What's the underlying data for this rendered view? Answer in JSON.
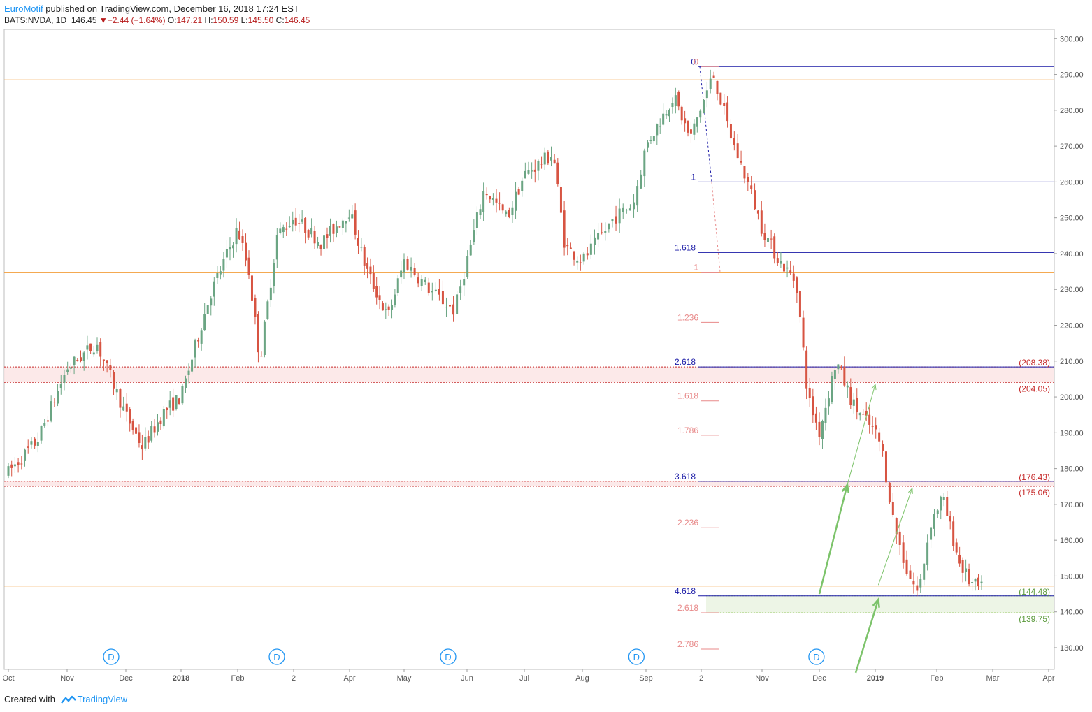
{
  "header": {
    "author": "EuroMotif",
    "published_text": "published on TradingView.com, December 16, 2018 17:24 EST",
    "symbol": "BATS:NVDA, 1D",
    "last": "146.45",
    "change": "−2.44 (−1.64%)",
    "o_label": "O:",
    "o_value": "147.21",
    "h_label": "H:",
    "h_value": "150.59",
    "l_label": "L:",
    "l_value": "145.50",
    "c_label": "C:",
    "c_value": "146.45"
  },
  "footer": {
    "created_text": "Created with",
    "brand": "TradingView"
  },
  "colors": {
    "up": "#6ba583",
    "down": "#d75442",
    "orange": "#f29d38",
    "fib_blue": "#1a1aa6",
    "fib_pink": "#e88a8a",
    "zone_red": "#fbe3e3",
    "zone_green": "#e8f2e0",
    "label_red": "#c62828",
    "label_green": "#5b9a3c",
    "arrow": "#7cc36a"
  },
  "chart_data": {
    "type": "candlestick",
    "symbol": "NVDA",
    "interval": "1D",
    "ylim": [
      123,
      303
    ],
    "y_ticks": [
      130,
      140,
      150,
      160,
      170,
      180,
      190,
      200,
      210,
      220,
      230,
      240,
      250,
      260,
      270,
      280,
      290,
      300
    ],
    "x_labels": [
      {
        "label": "Oct",
        "month": 0
      },
      {
        "label": "Nov",
        "month": 1
      },
      {
        "label": "Dec",
        "month": 2
      },
      {
        "label": "2018",
        "month": 3
      },
      {
        "label": "Feb",
        "month": 4
      },
      {
        "label": "2",
        "month": 5
      },
      {
        "label": "Apr",
        "month": 6
      },
      {
        "label": "May",
        "month": 7
      },
      {
        "label": "Jun",
        "month": 8
      },
      {
        "label": "Jul",
        "month": 9
      },
      {
        "label": "Aug",
        "month": 10
      },
      {
        "label": "Sep",
        "month": 11
      },
      {
        "label": "2",
        "month": 12
      },
      {
        "label": "Nov",
        "month": 13
      },
      {
        "label": "Dec",
        "month": 14
      },
      {
        "label": "2019",
        "month": 15
      },
      {
        "label": "Feb",
        "month": 16
      },
      {
        "label": "Mar",
        "month": 17
      },
      {
        "label": "Apr",
        "month": 18
      }
    ],
    "price_path": [
      [
        0,
        179
      ],
      [
        0.5,
        188
      ],
      [
        1,
        208
      ],
      [
        1.5,
        215
      ],
      [
        2,
        195
      ],
      [
        2.3,
        186
      ],
      [
        2.7,
        196
      ],
      [
        3,
        200
      ],
      [
        3.5,
        228
      ],
      [
        4,
        247
      ],
      [
        4.2,
        235
      ],
      [
        4.4,
        210
      ],
      [
        4.7,
        245
      ],
      [
        5,
        250
      ],
      [
        5.5,
        243
      ],
      [
        6,
        252
      ],
      [
        6.3,
        236
      ],
      [
        6.7,
        222
      ],
      [
        7,
        238
      ],
      [
        7.4,
        230
      ],
      [
        7.8,
        224
      ],
      [
        8,
        238
      ],
      [
        8.3,
        258
      ],
      [
        8.7,
        250
      ],
      [
        9,
        262
      ],
      [
        9.5,
        268
      ],
      [
        9.7,
        242
      ],
      [
        10,
        238
      ],
      [
        10.5,
        250
      ],
      [
        10.8,
        254
      ],
      [
        11,
        270
      ],
      [
        11.5,
        284
      ],
      [
        11.8,
        272
      ],
      [
        12.2,
        290
      ],
      [
        12.5,
        272
      ],
      [
        12.8,
        258
      ],
      [
        13,
        247
      ],
      [
        13.3,
        238
      ],
      [
        13.6,
        232
      ],
      [
        13.8,
        200
      ],
      [
        14,
        190
      ],
      [
        14.3,
        210
      ],
      [
        14.6,
        198
      ],
      [
        15,
        190
      ],
      [
        15.1,
        186
      ],
      [
        15.3,
        165
      ],
      [
        15.5,
        152
      ],
      [
        15.7,
        145
      ],
      [
        15.9,
        165
      ],
      [
        16.1,
        172
      ],
      [
        16.4,
        154
      ],
      [
        16.6,
        148
      ],
      [
        16.8,
        146.45
      ]
    ],
    "horizontal_levels": [
      {
        "price": 288.5,
        "type": "resistance"
      },
      {
        "price": 234.8,
        "type": "support"
      },
      {
        "price": 147.2,
        "type": "support"
      }
    ],
    "zones": [
      {
        "top": 208.38,
        "bottom": 204.05,
        "label_top": "(208.38)",
        "label_bottom": "(204.05)",
        "color": "red"
      },
      {
        "top": 176.43,
        "bottom": 175.06,
        "label_top": "(176.43)",
        "label_bottom": "(175.06)",
        "color": "red"
      },
      {
        "top": 144.48,
        "bottom": 139.75,
        "label_top": "(144.48)",
        "label_bottom": "(139.75)",
        "color": "green"
      }
    ],
    "fib_extension_blue": [
      {
        "level": "0",
        "price": 292.2
      },
      {
        "level": "1",
        "price": 260
      },
      {
        "level": "1.618",
        "price": 240.3
      },
      {
        "level": "2.618",
        "price": 208.38
      },
      {
        "level": "3.618",
        "price": 176.43
      },
      {
        "level": "4.618",
        "price": 144.48
      }
    ],
    "fib_extension_pink": [
      {
        "level": "0",
        "price": 292.2
      },
      {
        "level": "1",
        "price": 234.8
      },
      {
        "level": "1.236",
        "price": 220.8
      },
      {
        "level": "1.618",
        "price": 198.9
      },
      {
        "level": "1.786",
        "price": 189.3
      },
      {
        "level": "2.236",
        "price": 163.5
      },
      {
        "level": "2.618",
        "price": 139.75
      },
      {
        "level": "2.786",
        "price": 129.6
      }
    ],
    "dividend_markers": [
      {
        "label": "D",
        "month": 1.75
      },
      {
        "label": "D",
        "month": 4.7
      },
      {
        "label": "D",
        "month": 7.7
      },
      {
        "label": "D",
        "month": 10.85
      },
      {
        "label": "D",
        "month": 13.95
      }
    ],
    "projection_arrows": [
      {
        "from": [
          14,
          145
        ],
        "to": [
          14.5,
          175.5
        ],
        "style": "bold"
      },
      {
        "from": [
          14.5,
          175.5
        ],
        "to": [
          15,
          203.5
        ],
        "style": "thin"
      },
      {
        "from": [
          14.65,
          123
        ],
        "to": [
          15.05,
          143.5
        ],
        "style": "bold"
      },
      {
        "from": [
          15.05,
          147.5
        ],
        "to": [
          15.6,
          174.5
        ],
        "style": "thin"
      }
    ]
  }
}
